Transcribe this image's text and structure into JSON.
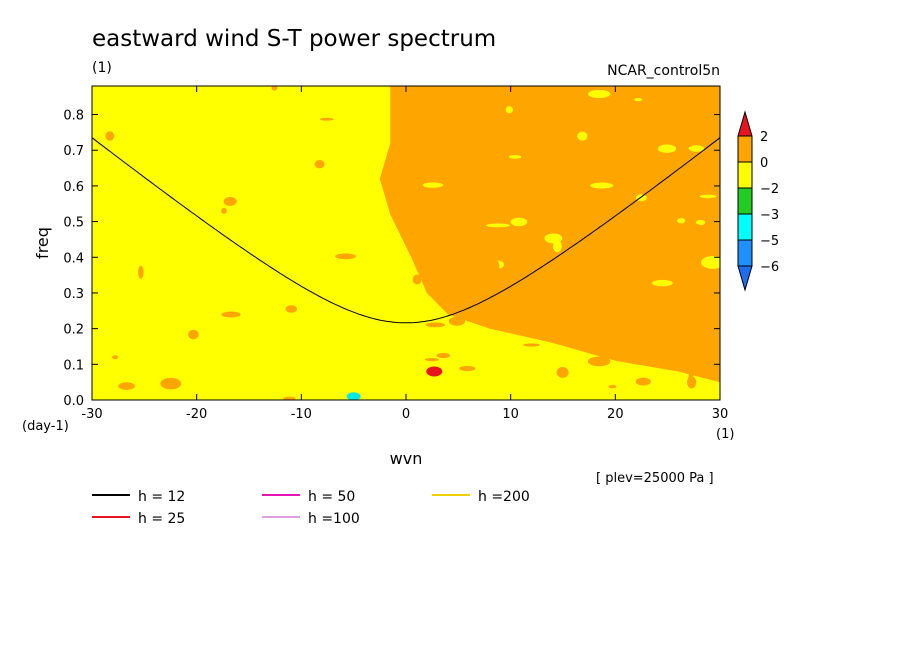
{
  "chart_data": {
    "type": "heatmap",
    "title": "eastward wind S-T power spectrum",
    "units_label": "(1)",
    "run_label": "NCAR_control5n",
    "xlabel": "wvn",
    "ylabel": "freq",
    "x_unit": "(1)",
    "y_unit": "(day-1)",
    "xlim": [
      -30,
      30
    ],
    "ylim": [
      0,
      0.88
    ],
    "x_ticks": [
      -30,
      -20,
      -10,
      0,
      10,
      20,
      30
    ],
    "y_ticks": [
      0.0,
      0.1,
      0.2,
      0.3,
      0.4,
      0.5,
      0.6,
      0.7,
      0.8
    ],
    "level_note": "[ plev=25000 Pa ]",
    "colorbar": {
      "labels": [
        "2",
        "0",
        "-2",
        "-3",
        "-5",
        "-6"
      ],
      "colors": [
        "#e8141e",
        "#ffa500",
        "#ffff00",
        "#22cc22",
        "#00ffff",
        "#1e90ff",
        "#1e6cf0"
      ]
    },
    "field_colors": {
      "background": "#ffff00",
      "positive": "#ffa500",
      "peak": "#e8141e",
      "minimum": "#00e8e8"
    },
    "series": [
      {
        "name": "h = 12",
        "color": "#000000",
        "h": 12
      },
      {
        "name": "h = 25",
        "color": "#e8141e",
        "h": 25
      },
      {
        "name": "h = 50",
        "color": "#e614b4",
        "h": 50
      },
      {
        "name": "h =100",
        "color": "#e0a0e0",
        "h": 100
      },
      {
        "name": "h =200",
        "color": "#f0d000",
        "h": 200
      }
    ]
  }
}
